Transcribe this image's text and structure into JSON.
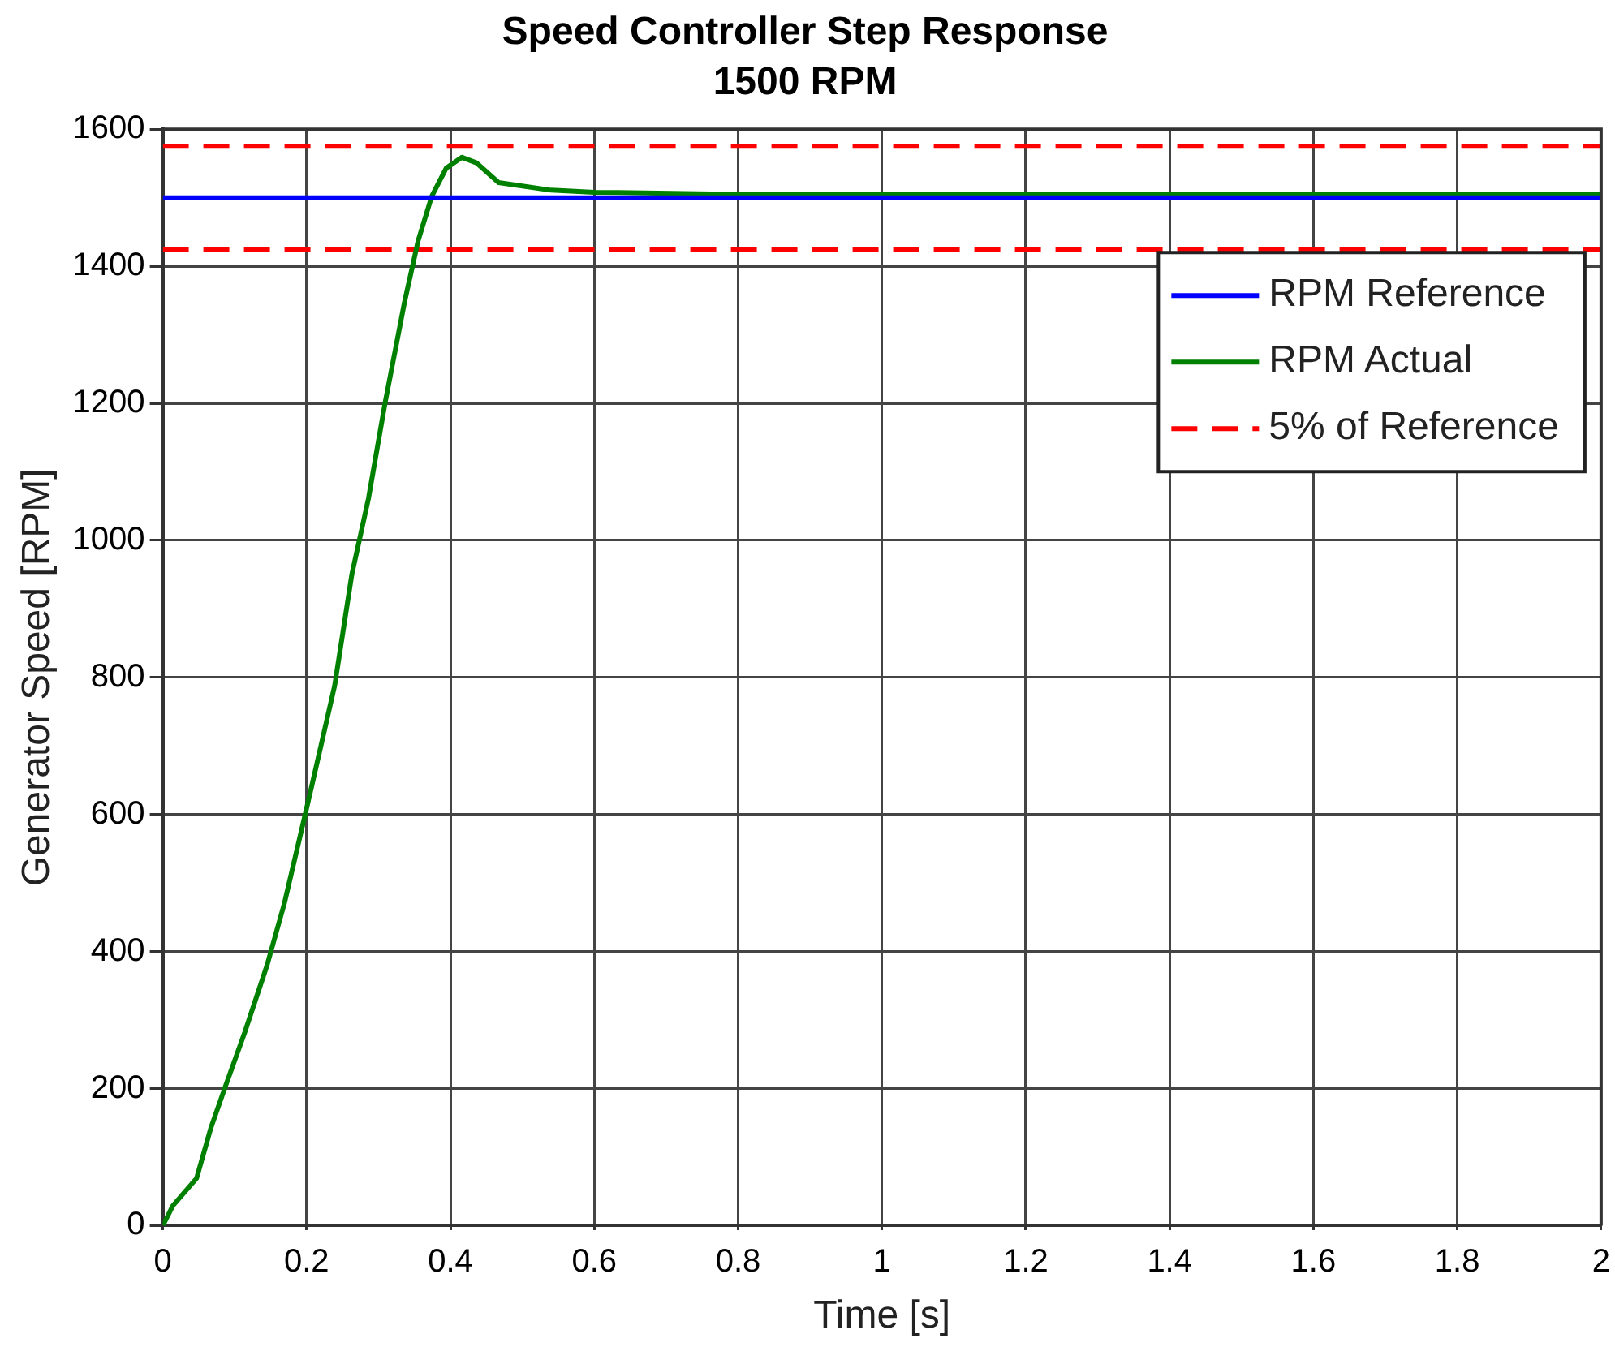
{
  "chart_data": {
    "type": "line",
    "title": "Speed Controller Step Response",
    "subtitle": "1500 RPM",
    "xlabel": "Time [s]",
    "ylabel": "Generator Speed [RPM]",
    "xlim": [
      0,
      2
    ],
    "xticks": [
      0,
      0.2,
      0.4,
      0.6,
      0.8,
      1,
      1.2,
      1.4,
      1.6,
      1.8,
      2
    ],
    "ylim": [
      0,
      1600
    ],
    "yticks": [
      0,
      200,
      400,
      600,
      800,
      1000,
      1200,
      1400,
      1600
    ],
    "grid": true,
    "legend": "top right",
    "marker": "none",
    "series": [
      {
        "name": "RPM Reference",
        "color": "#0000ff",
        "x": [
          0,
          2
        ],
        "values": [
          1500,
          1500
        ],
        "line_style": "solid"
      },
      {
        "name": "RPM Actual",
        "color": "#008000",
        "x": [
          0,
          0.014,
          0.047,
          0.067,
          0.086,
          0.114,
          0.145,
          0.169,
          0.198,
          0.216,
          0.239,
          0.263,
          0.286,
          0.309,
          0.336,
          0.355,
          0.374,
          0.394,
          0.416,
          0.436,
          0.467,
          0.494,
          0.54,
          0.6,
          0.8,
          1.2,
          1.6,
          2
        ],
        "values": [
          0,
          29,
          69,
          143,
          200,
          282,
          380,
          470,
          600,
          682,
          788,
          951,
          1061,
          1200,
          1347,
          1437,
          1502,
          1543,
          1559,
          1551,
          1522,
          1518,
          1511,
          1508,
          1505,
          1505,
          1505,
          1505
        ],
        "line_style": "solid"
      },
      {
        "name": "5% of Reference",
        "color": "#ff0000",
        "x": [
          0,
          2
        ],
        "values": [
          1575,
          1575
        ],
        "line_style": "dashed"
      },
      {
        "color": "#ff0000",
        "x": [
          0,
          2
        ],
        "values": [
          1425,
          1425
        ],
        "line_style": "dashed"
      }
    ]
  }
}
